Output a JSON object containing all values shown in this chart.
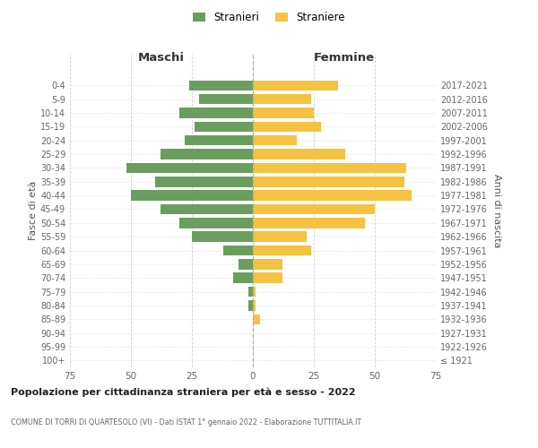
{
  "age_groups": [
    "100+",
    "95-99",
    "90-94",
    "85-89",
    "80-84",
    "75-79",
    "70-74",
    "65-69",
    "60-64",
    "55-59",
    "50-54",
    "45-49",
    "40-44",
    "35-39",
    "30-34",
    "25-29",
    "20-24",
    "15-19",
    "10-14",
    "5-9",
    "0-4"
  ],
  "birth_years": [
    "≤ 1921",
    "1922-1926",
    "1927-1931",
    "1932-1936",
    "1937-1941",
    "1942-1946",
    "1947-1951",
    "1952-1956",
    "1957-1961",
    "1962-1966",
    "1967-1971",
    "1972-1976",
    "1977-1981",
    "1982-1986",
    "1987-1991",
    "1992-1996",
    "1997-2001",
    "2002-2006",
    "2007-2011",
    "2012-2016",
    "2017-2021"
  ],
  "males": [
    0,
    0,
    0,
    0,
    2,
    2,
    8,
    6,
    12,
    25,
    30,
    38,
    50,
    40,
    52,
    38,
    28,
    24,
    30,
    22,
    26
  ],
  "females": [
    0,
    0,
    0,
    3,
    1,
    1,
    12,
    12,
    24,
    22,
    46,
    50,
    65,
    62,
    63,
    38,
    18,
    28,
    25,
    24,
    35
  ],
  "male_color": "#6a9e5e",
  "female_color": "#f5c242",
  "male_label": "Stranieri",
  "female_label": "Straniere",
  "title": "Popolazione per cittadinanza straniera per età e sesso - 2022",
  "subtitle": "COMUNE DI TORRI DI QUARTESOLO (VI) - Dati ISTAT 1° gennaio 2022 - Elaborazione TUTTITALIA.IT",
  "left_header": "Maschi",
  "right_header": "Femmine",
  "left_ylabel": "Fasce di età",
  "right_ylabel": "Anni di nascita",
  "xlim": 75,
  "background_color": "#ffffff",
  "grid_color": "#cccccc"
}
